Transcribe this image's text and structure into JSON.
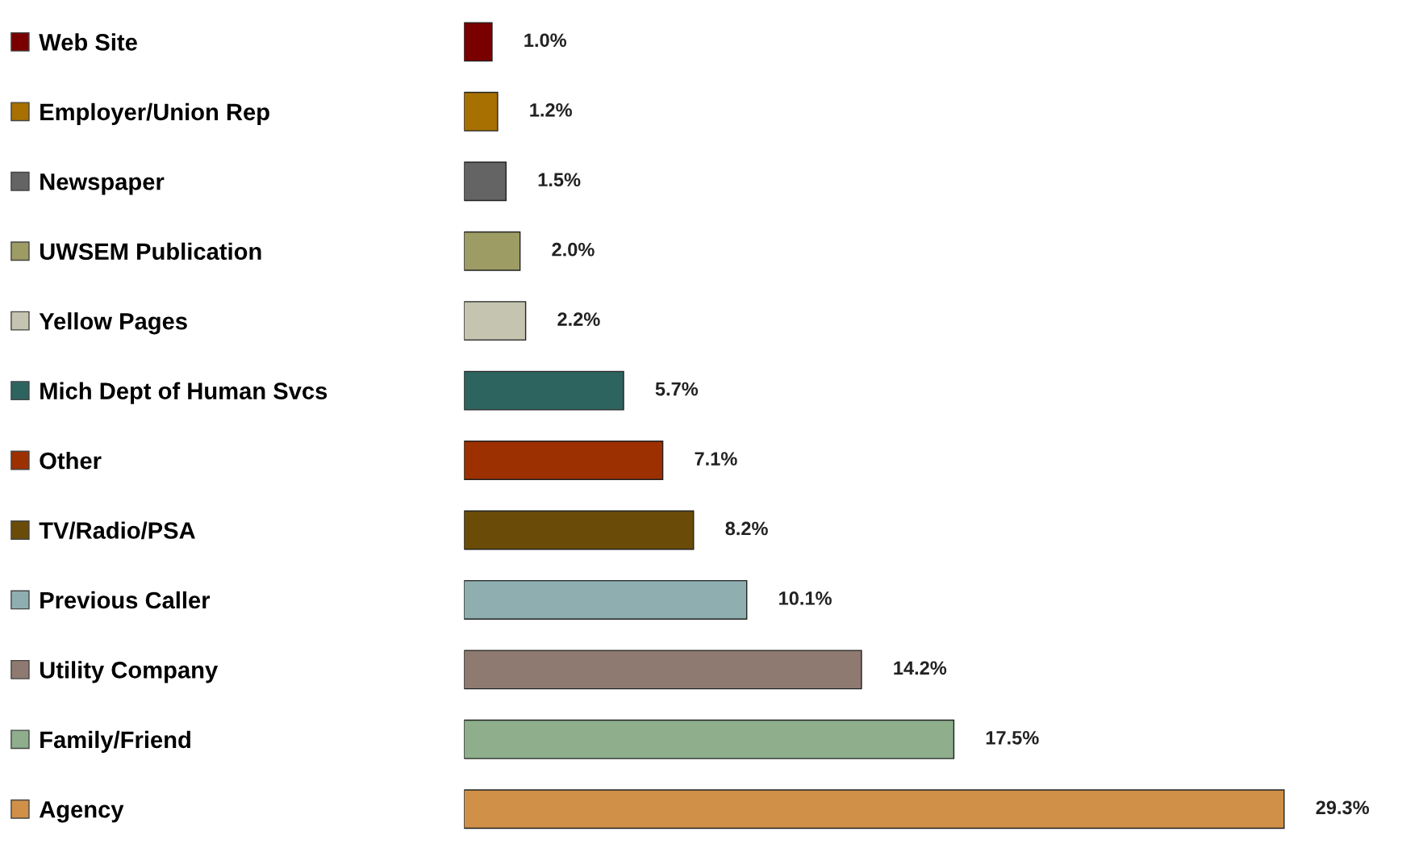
{
  "chart_data": {
    "type": "bar",
    "orientation": "horizontal",
    "categories": [
      "Web Site",
      "Employer/Union Rep",
      "Newspaper",
      "UWSEM Publication",
      "Yellow Pages",
      "Mich Dept of Human Svcs",
      "Other",
      "TV/Radio/PSA",
      "Previous Caller",
      "Utility Company",
      "Family/Friend",
      "Agency"
    ],
    "values": [
      1.0,
      1.2,
      1.5,
      2.0,
      2.2,
      5.7,
      7.1,
      8.2,
      10.1,
      14.2,
      17.5,
      29.3
    ],
    "value_labels": [
      "1.0%",
      "1.2%",
      "1.5%",
      "2.0%",
      "2.2%",
      "5.7%",
      "7.1%",
      "8.2%",
      "10.1%",
      "14.2%",
      "17.5%",
      "29.3%"
    ],
    "colors": [
      "#7a0000",
      "#a87000",
      "#646464",
      "#9c9c64",
      "#c4c4b0",
      "#2e6460",
      "#9c3000",
      "#6a4c08",
      "#8eaeb0",
      "#8e7a70",
      "#8eae8c",
      "#d09048"
    ],
    "tick_labels": "y",
    "grid": false
  }
}
